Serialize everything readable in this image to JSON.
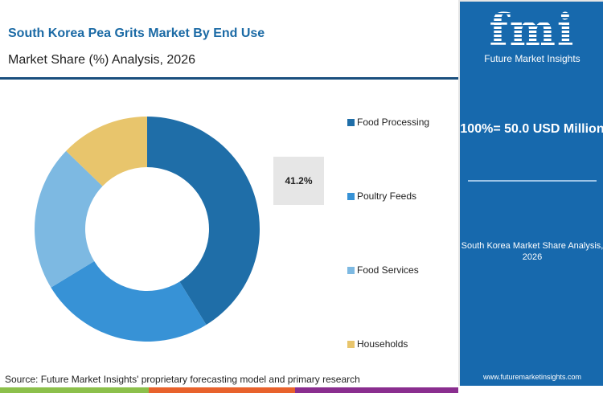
{
  "title": "South Korea Pea Grits Market By End Use",
  "subtitle": "Market Share (%) Analysis, 2026",
  "logo": {
    "letters": "fmi",
    "name": "Future Market Insights"
  },
  "panel": {
    "total": "100%= 50.0 USD Million",
    "note": "South Korea Market Share Analysis, 2026",
    "url": "www.futuremarketinsights.com"
  },
  "source": "Source: Future Market Insights' proprietary forecasting model and primary research",
  "chart_data": {
    "type": "pie",
    "donut": true,
    "categories": [
      "Food Processing",
      "Poultry Feeds",
      "Food Services",
      "Households"
    ],
    "values": [
      41.2,
      25.1,
      20.9,
      12.8
    ],
    "colors": [
      "#1f6ea8",
      "#3792d6",
      "#7db9e2",
      "#e8c56c"
    ],
    "data_labels": {
      "Food Processing": "41.2%"
    },
    "legend": "right"
  },
  "bottom_bar_colors": [
    "#8cc04b",
    "#e8622c",
    "#8a2e8f"
  ]
}
